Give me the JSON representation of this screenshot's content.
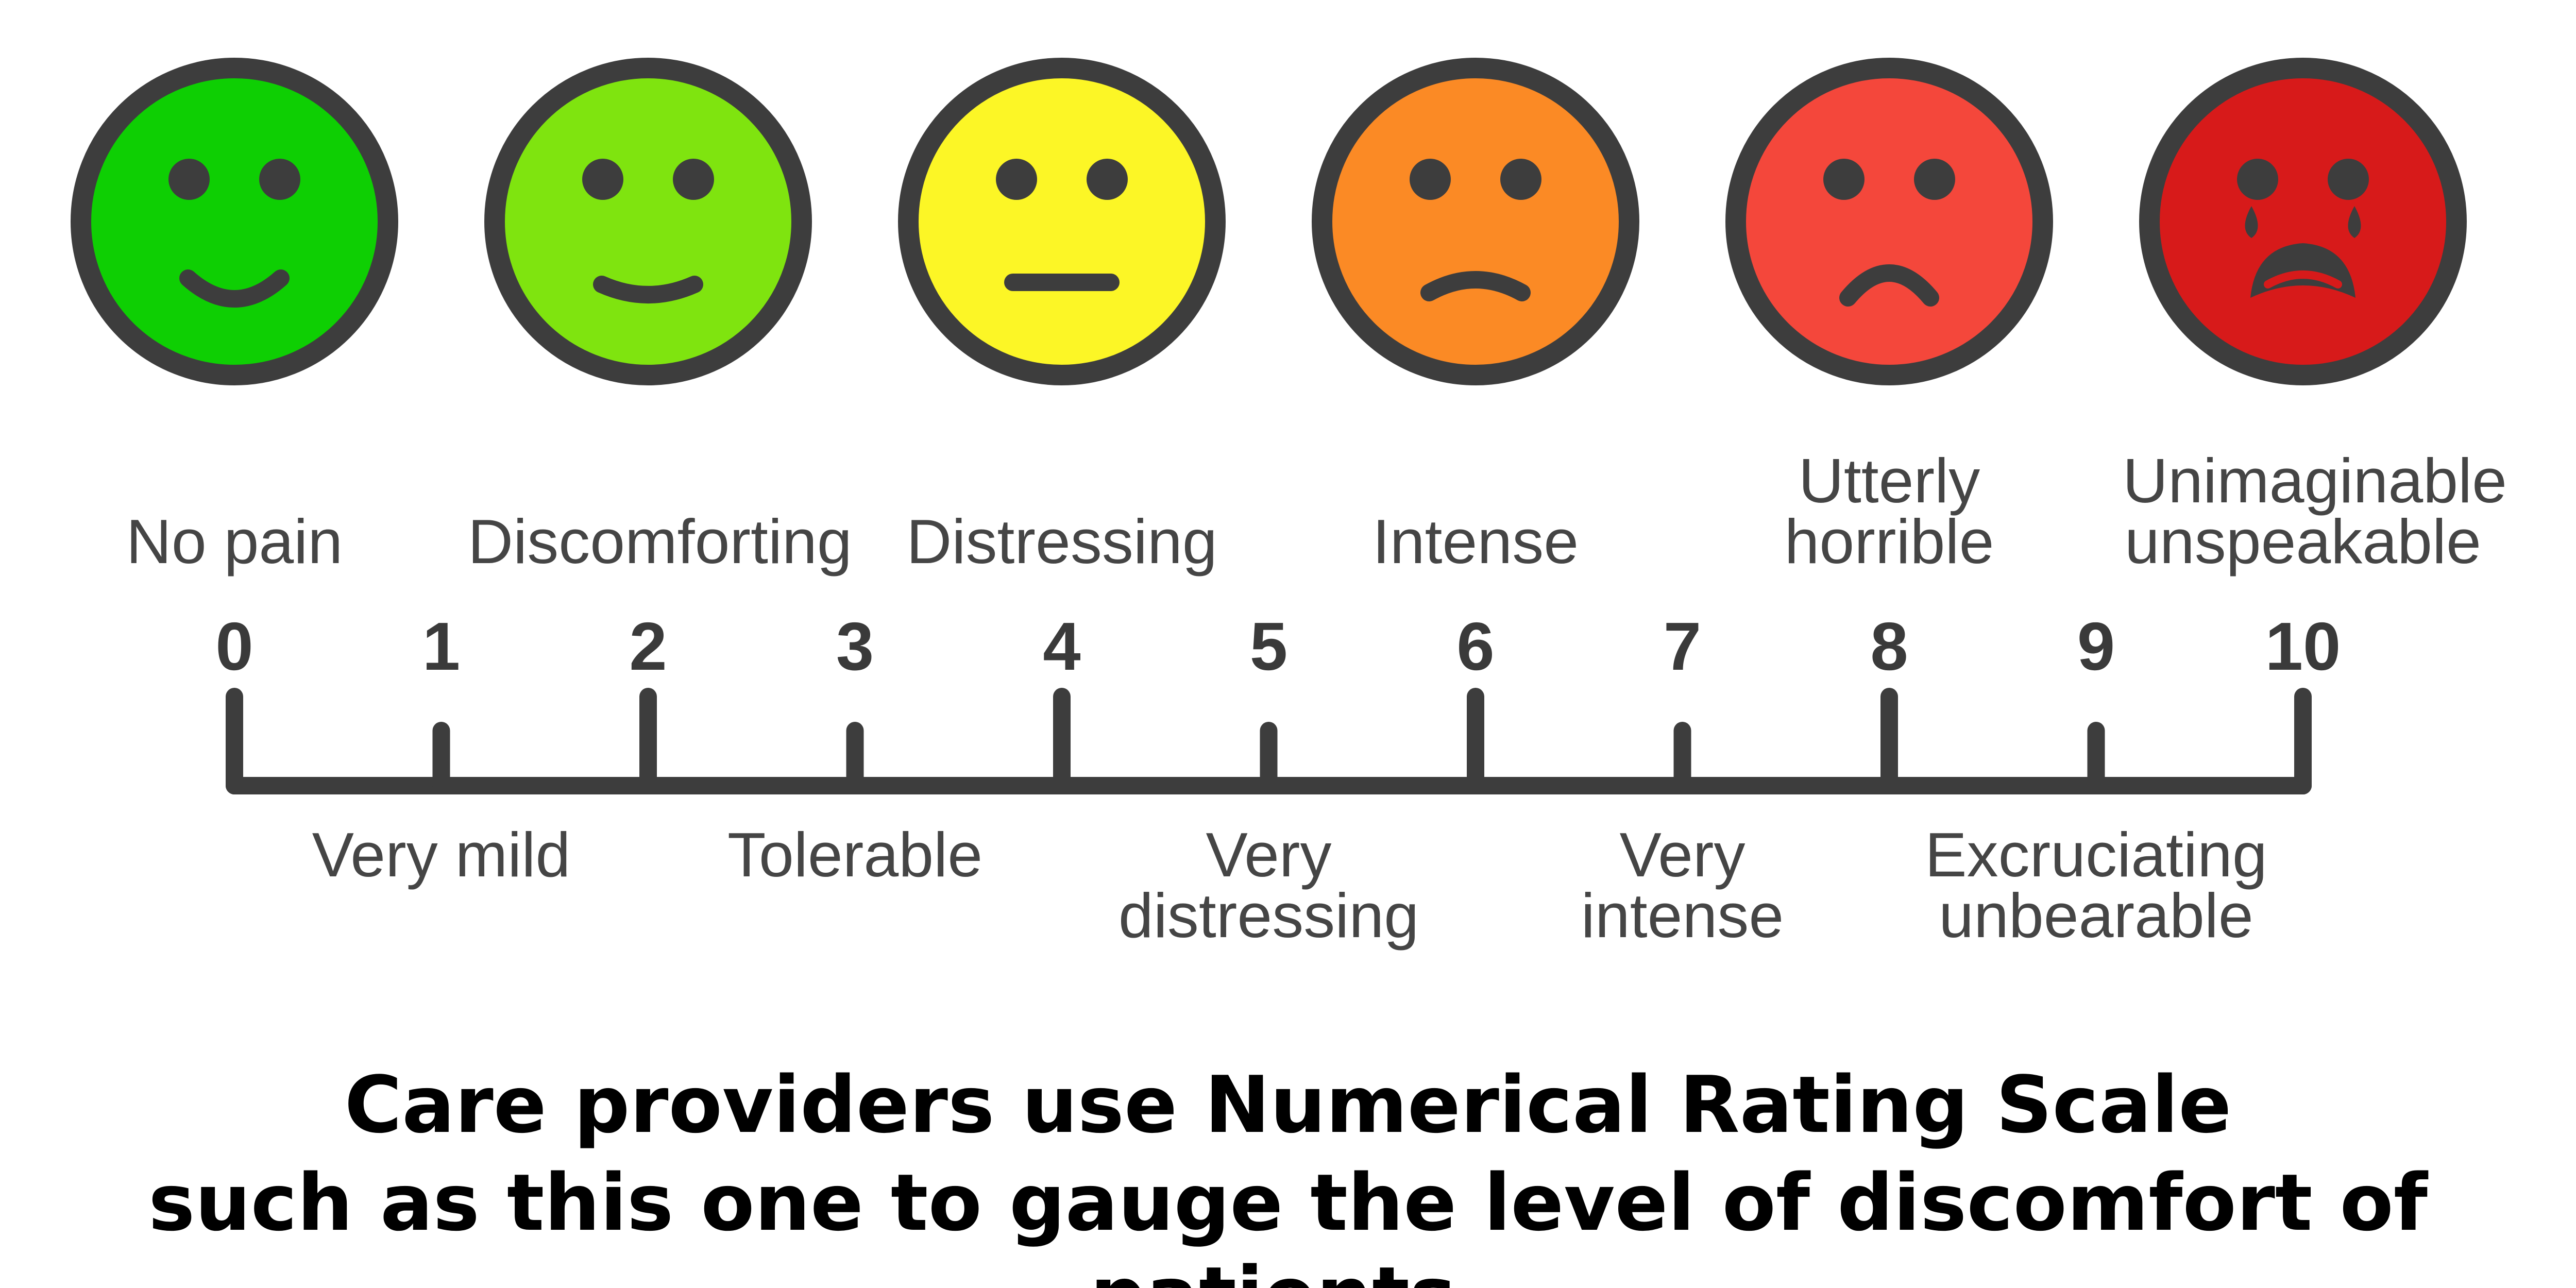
{
  "faces": [
    {
      "name": "no-pain-face",
      "color": "#0ecf03",
      "mouth": "smile",
      "tears": false
    },
    {
      "name": "discomforting-face",
      "color": "#7fe40f",
      "mouth": "slight-smile",
      "tears": false
    },
    {
      "name": "distressing-face",
      "color": "#fcf626",
      "mouth": "neutral",
      "tears": false
    },
    {
      "name": "intense-face",
      "color": "#fb8a25",
      "mouth": "slight-frown",
      "tears": false
    },
    {
      "name": "utterly-horrible-face",
      "color": "#f4473b",
      "mouth": "frown",
      "tears": false
    },
    {
      "name": "unimaginable-face",
      "color": "#d71a1a",
      "mouth": "crying",
      "tears": true
    }
  ],
  "scale": {
    "min": 0,
    "max": 10,
    "numbers": [
      "0",
      "1",
      "2",
      "3",
      "4",
      "5",
      "6",
      "7",
      "8",
      "9",
      "10"
    ],
    "line_color": "#3d3d3d"
  },
  "labels_top": [
    {
      "value": 0,
      "text": "No pain"
    },
    {
      "value": 2,
      "text": "Discomforting"
    },
    {
      "value": 4,
      "text": "Distressing"
    },
    {
      "value": 6,
      "text": "Intense"
    },
    {
      "value": 8,
      "text": "Utterly\nhorrible"
    },
    {
      "value": 10,
      "text": "Unimaginable\nunspeakable"
    }
  ],
  "labels_bottom": [
    {
      "value": 1,
      "text": "Very mild"
    },
    {
      "value": 3,
      "text": "Tolerable"
    },
    {
      "value": 5,
      "text": "Very\ndistressing"
    },
    {
      "value": 7,
      "text": "Very\nintense"
    },
    {
      "value": 9,
      "text": "Excruciating\nunbearable"
    }
  ],
  "caption": {
    "line1": "Care providers use Numerical Rating Scale",
    "line2": "such as this one to gauge the level of discomfort of patients."
  },
  "colors": {
    "outline": "#3d3d3d",
    "text": "#454545",
    "caption": "#000000"
  }
}
